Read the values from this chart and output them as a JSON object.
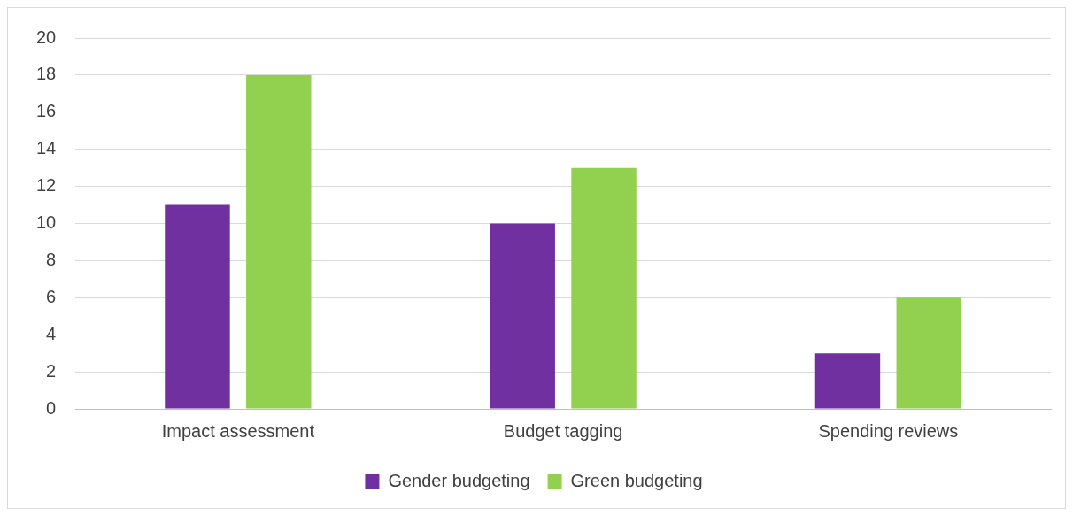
{
  "chart_data": {
    "type": "bar",
    "categories": [
      "Impact assessment",
      "Budget tagging",
      "Spending reviews"
    ],
    "series": [
      {
        "name": "Gender budgeting",
        "color": "#7030a0",
        "values": [
          11,
          10,
          3
        ]
      },
      {
        "name": "Green budgeting",
        "color": "#92d050",
        "values": [
          18,
          13,
          6
        ]
      }
    ],
    "ylim": [
      0,
      20
    ],
    "yticks": [
      0,
      2,
      4,
      6,
      8,
      10,
      12,
      14,
      16,
      18,
      20
    ],
    "grid": "y",
    "legend": "bottom"
  }
}
